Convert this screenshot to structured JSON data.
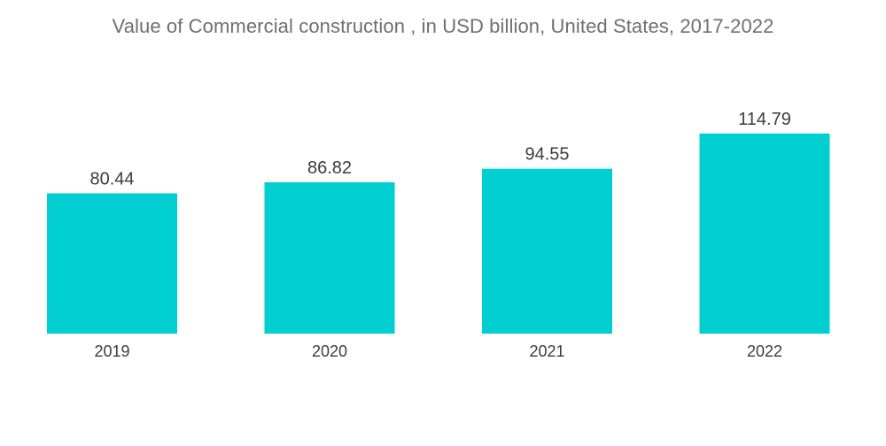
{
  "chart_data": {
    "type": "bar",
    "title": "Value of Commercial construction , in USD billion, United States, 2017-2022",
    "xlabel": "",
    "ylabel": "",
    "categories": [
      "2019",
      "2020",
      "2021",
      "2022"
    ],
    "values": [
      80.44,
      86.82,
      94.55,
      114.79
    ],
    "value_labels": [
      "80.44",
      "86.82",
      "94.55",
      "114.79"
    ],
    "ylim": [
      0,
      125
    ],
    "grid": false,
    "legend": "none",
    "colors": {
      "bar": "#00ced1"
    }
  }
}
